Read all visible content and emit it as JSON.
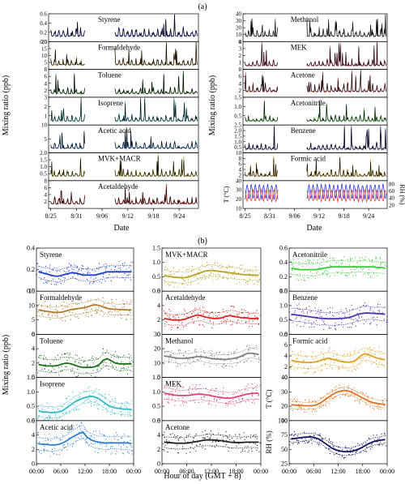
{
  "panel_a": {
    "label": "(a)",
    "ylabel": "Mixing ratio (ppb)",
    "xlabel": "Date",
    "date_ticks": [
      "8/25",
      "8/31",
      "9/06",
      "9/12",
      "9/18",
      "9/24"
    ],
    "left_species": [
      {
        "name": "Styrene",
        "color": "#1f3fbf",
        "ticks": [
          0.0,
          0.2,
          0.4,
          0.6
        ],
        "level": 0.22,
        "peak": 0.6
      },
      {
        "name": "Formaldehyde",
        "color": "#b07a2a",
        "ticks": [
          0,
          5,
          10,
          15,
          20
        ],
        "level": 6,
        "peak": 20
      },
      {
        "name": "Toluene",
        "color": "#1a6e1a",
        "ticks": [
          0,
          2,
          4,
          6,
          8
        ],
        "level": 2,
        "peak": 8
      },
      {
        "name": "Isoprene",
        "color": "#2fb8c8",
        "ticks": [
          0,
          1,
          2,
          3
        ],
        "level": 0.8,
        "peak": 3
      },
      {
        "name": "Acetic acid",
        "color": "#2f7fd0",
        "ticks": [
          0,
          5,
          10
        ],
        "level": 3,
        "peak": 10
      },
      {
        "name": "MVK+MACR",
        "color": "#c8b020",
        "ticks": [
          0.0,
          0.5,
          1.0,
          1.5,
          2.0
        ],
        "level": 0.6,
        "peak": 2.0
      },
      {
        "name": "Acetaldehyde",
        "color": "#e02020",
        "ticks": [
          0,
          2,
          4,
          6,
          8
        ],
        "level": 2.5,
        "peak": 7
      }
    ],
    "right_species": [
      {
        "name": "Methanol",
        "color": "#808080",
        "ticks": [
          0,
          10,
          20,
          30,
          40
        ],
        "level": 14,
        "peak": 40
      },
      {
        "name": "MEK",
        "color": "#e0407a",
        "ticks": [
          0,
          1,
          2,
          3,
          4
        ],
        "level": 1.0,
        "peak": 4
      },
      {
        "name": "Acetone",
        "color": "#d05050",
        "ticks": [
          0,
          2,
          4,
          6,
          8
        ],
        "level": 3,
        "peak": 8
      },
      {
        "name": "Acetonitrile",
        "color": "#33cc33",
        "ticks": [
          0.0,
          0.5,
          1.0,
          1.5
        ],
        "level": 0.4,
        "peak": 1.5
      },
      {
        "name": "Benzene",
        "color": "#3030a0",
        "ticks": [
          0.0,
          0.5,
          1.0,
          1.5,
          2.0,
          2.5
        ],
        "level": 0.6,
        "peak": 2.5
      },
      {
        "name": "Formic acid",
        "color": "#e0a020",
        "ticks": [
          0,
          2,
          4,
          6,
          8,
          10
        ],
        "level": 3,
        "peak": 9
      }
    ],
    "met_panel": {
      "left_label": "T (°C)",
      "right_label": "RH (%)",
      "left_ticks": [
        10,
        20,
        30,
        40
      ],
      "right_ticks": [
        20,
        40,
        60,
        80
      ],
      "t_color": "#e03030",
      "rh_color": "#2020e0"
    }
  },
  "panel_b": {
    "label": "(b)",
    "ylabel": "Mixing ratio (ppb)",
    "xlabel": "Hour of day (GMT + 8)",
    "hour_ticks": [
      "00:00",
      "06:00",
      "12:00",
      "18:00",
      "00:00"
    ],
    "columns": [
      [
        {
          "name": "Styrene",
          "color": "#1f3fbf",
          "ticks": [
            0.0,
            0.2,
            0.4
          ],
          "mean": [
            0.18,
            0.17,
            0.16,
            0.15,
            0.14,
            0.14,
            0.15,
            0.16,
            0.17,
            0.17,
            0.16,
            0.15,
            0.15,
            0.15,
            0.15,
            0.16,
            0.17,
            0.18,
            0.18,
            0.18,
            0.18,
            0.18,
            0.18,
            0.18
          ],
          "spread": 0.1
        },
        {
          "name": "Formaldehyde",
          "color": "#b07a2a",
          "ticks": [
            0,
            5,
            10,
            15
          ],
          "mean": [
            8.5,
            8.2,
            8.0,
            7.8,
            7.6,
            7.6,
            7.8,
            8.2,
            8.6,
            8.8,
            9.0,
            9.2,
            9.5,
            10.0,
            10.3,
            10.0,
            9.5,
            9.0,
            8.8,
            8.7,
            8.6,
            8.6,
            8.5,
            8.5
          ],
          "spread": 3.5
        },
        {
          "name": "Toluene",
          "color": "#1a6e1a",
          "ticks": [
            0,
            2,
            4,
            6
          ],
          "mean": [
            1.8,
            1.7,
            1.6,
            1.6,
            1.6,
            1.7,
            1.9,
            2.0,
            1.9,
            1.7,
            1.5,
            1.4,
            1.4,
            1.4,
            1.5,
            1.8,
            2.4,
            2.6,
            2.3,
            2.0,
            1.9,
            1.9,
            1.9,
            1.9
          ],
          "spread": 1.6
        },
        {
          "name": "Isoprene",
          "color": "#2fb8c8",
          "ticks": [
            0.0,
            0.5,
            1.0,
            1.5
          ],
          "mean": [
            0.35,
            0.3,
            0.3,
            0.28,
            0.28,
            0.3,
            0.35,
            0.45,
            0.55,
            0.65,
            0.72,
            0.78,
            0.82,
            0.85,
            0.82,
            0.75,
            0.65,
            0.55,
            0.48,
            0.44,
            0.42,
            0.4,
            0.4,
            0.38
          ],
          "spread": 0.35
        },
        {
          "name": "Acetic acid",
          "color": "#2f7fd0",
          "ticks": [
            0,
            2,
            4,
            6
          ],
          "mean": [
            2.8,
            2.7,
            2.7,
            2.6,
            2.6,
            2.7,
            2.9,
            3.2,
            3.6,
            3.9,
            4.2,
            4.4,
            3.7,
            3.3,
            3.1,
            3.0,
            2.9,
            2.9,
            2.9,
            2.9,
            2.9,
            2.9,
            2.9,
            2.8
          ],
          "spread": 1.6
        }
      ],
      [
        {
          "name": "MVK+MACR",
          "color": "#b8a020",
          "ticks": [
            0.0,
            0.5,
            1.0,
            1.5
          ],
          "mean": [
            0.55,
            0.52,
            0.5,
            0.48,
            0.47,
            0.47,
            0.5,
            0.55,
            0.6,
            0.65,
            0.7,
            0.72,
            0.72,
            0.7,
            0.68,
            0.66,
            0.64,
            0.62,
            0.6,
            0.58,
            0.57,
            0.56,
            0.56,
            0.55
          ],
          "spread": 0.35
        },
        {
          "name": "Acetaldehyde",
          "color": "#e02020",
          "ticks": [
            0,
            2,
            4,
            6
          ],
          "mean": [
            2.2,
            2.1,
            2.0,
            2.0,
            2.0,
            2.1,
            2.3,
            2.5,
            2.7,
            2.6,
            2.4,
            2.3,
            2.2,
            2.2,
            2.3,
            2.5,
            2.6,
            2.5,
            2.4,
            2.3,
            2.3,
            2.2,
            2.2,
            2.2
          ],
          "spread": 1.4
        },
        {
          "name": "Methanol",
          "color": "#808080",
          "ticks": [
            0,
            10,
            20,
            30
          ],
          "mean": [
            15,
            14.5,
            14,
            13.5,
            13.3,
            13.3,
            13.5,
            14,
            14.5,
            14.5,
            14,
            13.5,
            13,
            12.8,
            12.6,
            12.6,
            12.8,
            13.3,
            14,
            15,
            16.5,
            17,
            16.5,
            16
          ],
          "spread": 6
        },
        {
          "name": "MEK",
          "color": "#e0407a",
          "ticks": [
            0.0,
            0.5,
            1.0,
            1.5
          ],
          "mean": [
            0.95,
            0.93,
            0.9,
            0.88,
            0.87,
            0.87,
            0.88,
            0.9,
            0.92,
            0.92,
            0.9,
            0.88,
            0.85,
            0.82,
            0.8,
            0.78,
            0.78,
            0.8,
            0.84,
            0.88,
            0.92,
            0.94,
            0.95,
            0.95
          ],
          "spread": 0.35
        },
        {
          "name": "Acetone",
          "color": "#202020",
          "ticks": [
            0,
            2,
            4,
            6
          ],
          "mean": [
            3.0,
            2.95,
            2.9,
            2.85,
            2.85,
            2.85,
            2.9,
            3.0,
            3.1,
            3.2,
            3.3,
            3.3,
            3.3,
            3.25,
            3.2,
            3.1,
            3.0,
            2.95,
            2.95,
            2.95,
            3.0,
            3.0,
            3.0,
            3.0
          ],
          "spread": 1.4
        }
      ],
      [
        {
          "name": "Acetonitrile",
          "color": "#33cc33",
          "ticks": [
            0.0,
            0.2,
            0.4,
            0.6
          ],
          "mean": [
            0.32,
            0.31,
            0.3,
            0.3,
            0.3,
            0.3,
            0.3,
            0.31,
            0.32,
            0.33,
            0.34,
            0.34,
            0.34,
            0.34,
            0.34,
            0.34,
            0.34,
            0.34,
            0.34,
            0.34,
            0.34,
            0.33,
            0.33,
            0.32
          ],
          "spread": 0.15
        },
        {
          "name": "Benzene",
          "color": "#5030b0",
          "ticks": [
            0.0,
            0.5,
            1.0,
            1.5
          ],
          "mean": [
            0.7,
            0.68,
            0.66,
            0.64,
            0.62,
            0.6,
            0.58,
            0.56,
            0.55,
            0.54,
            0.54,
            0.54,
            0.55,
            0.56,
            0.58,
            0.62,
            0.68,
            0.72,
            0.74,
            0.74,
            0.73,
            0.72,
            0.71,
            0.7
          ],
          "spread": 0.4
        },
        {
          "name": "Formic acid",
          "color": "#e0a020",
          "ticks": [
            0,
            2,
            4,
            6,
            8
          ],
          "mean": [
            3.2,
            3.0,
            2.9,
            2.8,
            2.8,
            2.8,
            2.9,
            3.1,
            3.4,
            3.6,
            3.4,
            3.2,
            3.0,
            2.9,
            2.8,
            2.9,
            3.3,
            4.0,
            4.4,
            4.2,
            3.9,
            3.6,
            3.4,
            3.3
          ],
          "spread": 2.0
        }
      ]
    ],
    "met": [
      {
        "label": "T (°C)",
        "color": "#e07020",
        "ticks": [
          10,
          20,
          30,
          40
        ],
        "mean": [
          21,
          20.8,
          20.6,
          20.4,
          20.3,
          20.3,
          20.8,
          22,
          24,
          26,
          28,
          29.5,
          30.5,
          31,
          30.5,
          29.5,
          28,
          26.5,
          25,
          23.5,
          22.5,
          22,
          21.5,
          21.2
        ],
        "spread": 4.5
      },
      {
        "label": "RH (%)",
        "color": "#101060",
        "ticks": [
          25,
          50,
          75,
          100
        ],
        "mean": [
          68,
          69,
          70,
          71,
          71.5,
          71.5,
          70,
          67,
          62,
          57,
          52,
          49,
          47,
          46,
          46,
          47,
          49,
          52,
          56,
          60,
          63,
          65,
          66,
          67
        ],
        "spread": 12
      }
    ]
  }
}
